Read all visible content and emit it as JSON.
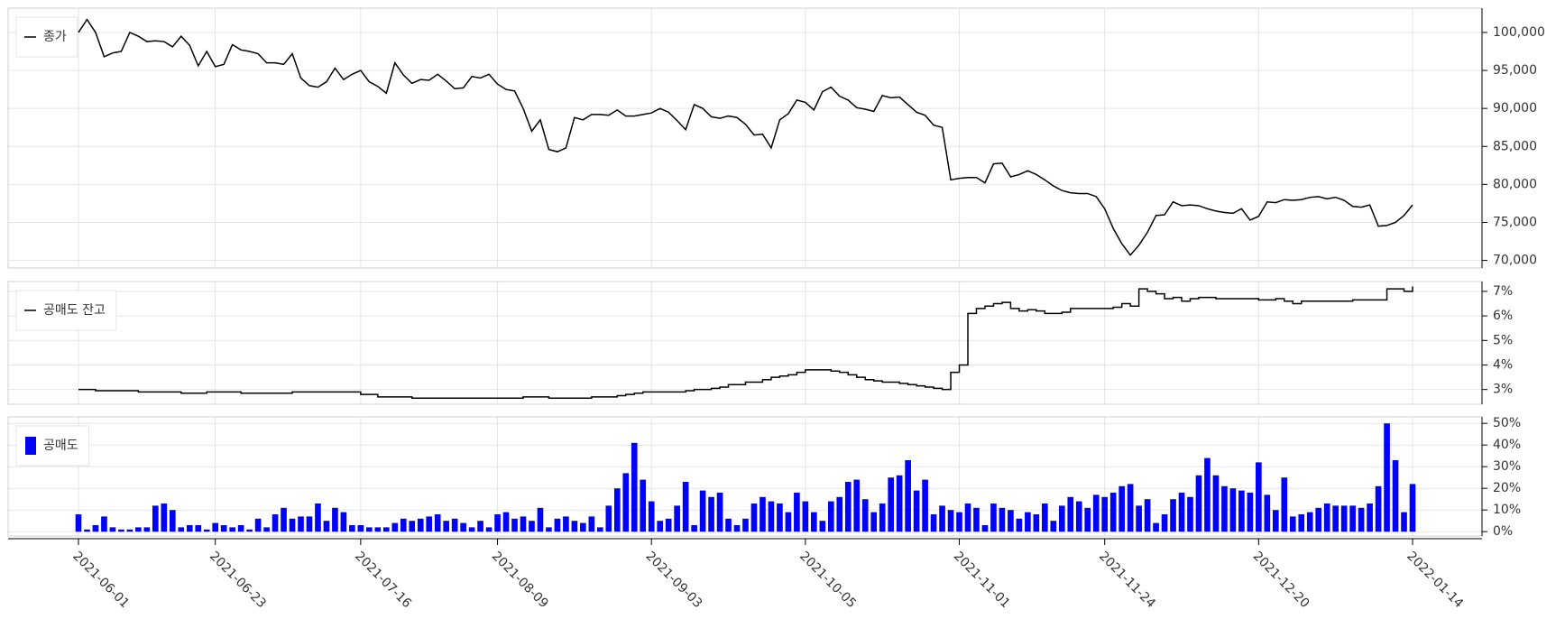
{
  "chart_data": {
    "x": [
      "2021-06-01",
      "2021-06-02",
      "2021-06-03",
      "2021-06-04",
      "2021-06-07",
      "2021-06-08",
      "2021-06-09",
      "2021-06-10",
      "2021-06-11",
      "2021-06-14",
      "2021-06-15",
      "2021-06-16",
      "2021-06-17",
      "2021-06-18",
      "2021-06-21",
      "2021-06-22",
      "2021-06-23",
      "2021-06-24",
      "2021-06-25",
      "2021-06-28",
      "2021-06-29",
      "2021-06-30",
      "2021-07-01",
      "2021-07-02",
      "2021-07-05",
      "2021-07-06",
      "2021-07-07",
      "2021-07-08",
      "2021-07-09",
      "2021-07-12",
      "2021-07-13",
      "2021-07-14",
      "2021-07-15",
      "2021-07-16",
      "2021-07-19",
      "2021-07-20",
      "2021-07-21",
      "2021-07-22",
      "2021-07-23",
      "2021-07-26",
      "2021-07-27",
      "2021-07-28",
      "2021-07-29",
      "2021-07-30",
      "2021-08-02",
      "2021-08-03",
      "2021-08-04",
      "2021-08-05",
      "2021-08-06",
      "2021-08-09",
      "2021-08-10",
      "2021-08-11",
      "2021-08-12",
      "2021-08-13",
      "2021-08-17",
      "2021-08-18",
      "2021-08-19",
      "2021-08-20",
      "2021-08-23",
      "2021-08-24",
      "2021-08-25",
      "2021-08-26",
      "2021-08-27",
      "2021-08-30",
      "2021-08-31",
      "2021-09-01",
      "2021-09-02",
      "2021-09-03",
      "2021-09-06",
      "2021-09-07",
      "2021-09-08",
      "2021-09-09",
      "2021-09-10",
      "2021-09-13",
      "2021-09-14",
      "2021-09-15",
      "2021-09-16",
      "2021-09-17",
      "2021-09-23",
      "2021-09-24",
      "2021-09-27",
      "2021-09-28",
      "2021-09-29",
      "2021-09-30",
      "2021-10-01",
      "2021-10-05",
      "2021-10-06",
      "2021-10-07",
      "2021-10-08",
      "2021-10-12",
      "2021-10-13",
      "2021-10-14",
      "2021-10-15",
      "2021-10-18",
      "2021-10-19",
      "2021-10-20",
      "2021-10-21",
      "2021-10-22",
      "2021-10-25",
      "2021-10-26",
      "2021-10-27",
      "2021-10-28",
      "2021-10-29",
      "2021-11-01",
      "2021-11-02",
      "2021-11-03",
      "2021-11-04",
      "2021-11-05",
      "2021-11-08",
      "2021-11-09",
      "2021-11-10",
      "2021-11-11",
      "2021-11-12",
      "2021-11-15",
      "2021-11-16",
      "2021-11-17",
      "2021-11-18",
      "2021-11-19",
      "2021-11-22",
      "2021-11-23",
      "2021-11-24",
      "2021-11-25",
      "2021-11-26",
      "2021-11-29",
      "2021-11-30",
      "2021-12-01",
      "2021-12-02",
      "2021-12-03",
      "2021-12-06",
      "2021-12-07",
      "2021-12-08",
      "2021-12-09",
      "2021-12-10",
      "2021-12-13",
      "2021-12-14",
      "2021-12-15",
      "2021-12-16",
      "2021-12-17",
      "2021-12-20",
      "2021-12-21",
      "2021-12-22",
      "2021-12-23",
      "2021-12-24",
      "2021-12-27",
      "2021-12-28",
      "2021-12-29",
      "2021-12-30",
      "2022-01-03",
      "2022-01-04",
      "2022-01-05",
      "2022-01-06",
      "2022-01-07",
      "2022-01-10",
      "2022-01-11",
      "2022-01-12",
      "2022-01-13",
      "2022-01-14"
    ],
    "xticks": [
      "2021-06-01",
      "2021-06-23",
      "2021-07-16",
      "2021-08-09",
      "2021-09-03",
      "2021-10-05",
      "2021-11-01",
      "2021-11-24",
      "2021-12-20",
      "2022-01-14"
    ],
    "panels": [
      {
        "type": "line",
        "legend": "upper left",
        "grid": true,
        "series": [
          {
            "name": "종가",
            "color": "#000000",
            "values": [
              100000,
              101700,
              100000,
              96800,
              97300,
              97500,
              100000,
              99500,
              98800,
              98900,
              98800,
              98100,
              99500,
              98300,
              95600,
              97500,
              95500,
              95800,
              98400,
              97700,
              97500,
              97200,
              96000,
              96000,
              95800,
              97200,
              94000,
              93000,
              92800,
              93500,
              95300,
              93800,
              94500,
              95000,
              93500,
              92900,
              92000,
              96000,
              94400,
              93300,
              93800,
              93700,
              94500,
              93600,
              92600,
              92700,
              94200,
              94000,
              94500,
              93200,
              92500,
              92300,
              90000,
              87000,
              88500,
              84600,
              84300,
              84800,
              88800,
              88500,
              89200,
              89200,
              89100,
              89800,
              89000,
              89000,
              89200,
              89400,
              90000,
              89500,
              88400,
              87200,
              90500,
              90000,
              88900,
              88700,
              89000,
              88800,
              87900,
              86500,
              86600,
              84800,
              88500,
              89300,
              91100,
              90800,
              89800,
              92200,
              92800,
              91600,
              91100,
              90100,
              89900,
              89600,
              91700,
              91400,
              91500,
              90500,
              89500,
              89100,
              87800,
              87500,
              80600,
              80800,
              80900,
              80900,
              80200,
              82700,
              82800,
              81000,
              81300,
              81800,
              81300,
              80600,
              79800,
              79200,
              78900,
              78800,
              78800,
              78400,
              76800,
              74200,
              72200,
              70700,
              72000,
              73700,
              75900,
              76000,
              77700,
              77200,
              77300,
              77200,
              76800,
              76500,
              76300,
              76200,
              76800,
              75300,
              75800,
              77700,
              77600,
              78000,
              77900,
              78000,
              78300,
              78400,
              78100,
              78300,
              77900,
              77100,
              77000,
              77300,
              74500,
              74600,
              75000,
              75900,
              77300
            ]
          }
        ],
        "ylim": [
          69000,
          103200
        ],
        "yticks": [
          {
            "value": 70000,
            "label": "70,000"
          },
          {
            "value": 75000,
            "label": "75,000"
          },
          {
            "value": 80000,
            "label": "80,000"
          },
          {
            "value": 85000,
            "label": "85,000"
          },
          {
            "value": 90000,
            "label": "90,000"
          },
          {
            "value": 95000,
            "label": "95,000"
          },
          {
            "value": 100000,
            "label": "100,000"
          }
        ]
      },
      {
        "type": "step",
        "legend": "upper left",
        "grid": true,
        "series": [
          {
            "name": "공매도 잔고",
            "color": "#000000",
            "values": [
              3.0,
              3.0,
              2.95,
              2.95,
              2.95,
              2.95,
              2.95,
              2.9,
              2.9,
              2.9,
              2.9,
              2.9,
              2.85,
              2.85,
              2.85,
              2.9,
              2.9,
              2.9,
              2.9,
              2.85,
              2.85,
              2.85,
              2.85,
              2.85,
              2.85,
              2.9,
              2.9,
              2.9,
              2.9,
              2.9,
              2.9,
              2.9,
              2.9,
              2.8,
              2.8,
              2.7,
              2.7,
              2.7,
              2.7,
              2.65,
              2.65,
              2.65,
              2.65,
              2.65,
              2.65,
              2.65,
              2.65,
              2.65,
              2.65,
              2.65,
              2.65,
              2.65,
              2.7,
              2.7,
              2.7,
              2.65,
              2.65,
              2.65,
              2.65,
              2.65,
              2.7,
              2.7,
              2.7,
              2.75,
              2.8,
              2.85,
              2.9,
              2.9,
              2.9,
              2.9,
              2.9,
              2.95,
              3.0,
              3.0,
              3.05,
              3.1,
              3.2,
              3.2,
              3.3,
              3.3,
              3.4,
              3.5,
              3.55,
              3.6,
              3.7,
              3.8,
              3.8,
              3.8,
              3.75,
              3.7,
              3.6,
              3.5,
              3.4,
              3.35,
              3.3,
              3.3,
              3.25,
              3.2,
              3.15,
              3.1,
              3.05,
              3.0,
              3.7,
              4.0,
              6.1,
              6.3,
              6.4,
              6.5,
              6.55,
              6.3,
              6.2,
              6.25,
              6.2,
              6.1,
              6.1,
              6.15,
              6.3,
              6.3,
              6.3,
              6.3,
              6.3,
              6.35,
              6.5,
              6.4,
              7.1,
              7.0,
              6.9,
              6.7,
              6.75,
              6.6,
              6.7,
              6.75,
              6.75,
              6.7,
              6.7,
              6.7,
              6.7,
              6.7,
              6.65,
              6.65,
              6.7,
              6.6,
              6.5,
              6.6,
              6.6,
              6.6,
              6.6,
              6.6,
              6.6,
              6.65,
              6.65,
              6.65,
              6.65,
              7.1,
              7.1,
              7.0,
              7.2
            ]
          }
        ],
        "ylim": [
          2.4,
          7.4
        ],
        "yticks": [
          {
            "value": 3,
            "label": "3%"
          },
          {
            "value": 4,
            "label": "4%"
          },
          {
            "value": 5,
            "label": "5%"
          },
          {
            "value": 6,
            "label": "6%"
          },
          {
            "value": 7,
            "label": "7%"
          }
        ]
      },
      {
        "type": "bar",
        "legend": "upper left",
        "grid": true,
        "series": [
          {
            "name": "공매도",
            "color": "#0000ff",
            "values": [
              8,
              1,
              3,
              7,
              2,
              1,
              1,
              2,
              2,
              12,
              13,
              10,
              2,
              3,
              3,
              1,
              4,
              3,
              2,
              3,
              1,
              6,
              2,
              8,
              11,
              6,
              7,
              7,
              13,
              5,
              11,
              9,
              3,
              3,
              2,
              2,
              2,
              4,
              6,
              5,
              6,
              7,
              8,
              5,
              6,
              4,
              2,
              5,
              2,
              8,
              9,
              6,
              7,
              5,
              11,
              2,
              6,
              7,
              5,
              4,
              7,
              2,
              12,
              20,
              27,
              41,
              24,
              14,
              5,
              6,
              12,
              23,
              3,
              19,
              16,
              18,
              6,
              3,
              6,
              13,
              16,
              14,
              13,
              9,
              18,
              14,
              9,
              5,
              14,
              16,
              23,
              24,
              15,
              9,
              13,
              25,
              26,
              33,
              19,
              24,
              8,
              12,
              10,
              9,
              13,
              11,
              3,
              13,
              11,
              10,
              6,
              9,
              8,
              13,
              5,
              12,
              16,
              14,
              11,
              17,
              16,
              18,
              21,
              22,
              12,
              15,
              4,
              8,
              15,
              18,
              16,
              26,
              34,
              26,
              21,
              20,
              19,
              18,
              32,
              17,
              10,
              25,
              7,
              8,
              9,
              11,
              13,
              12,
              12,
              12,
              11,
              13,
              21,
              50,
              33,
              9,
              22
            ]
          }
        ],
        "ylim": [
          -2,
          53
        ],
        "yticks": [
          {
            "value": 0,
            "label": "0%"
          },
          {
            "value": 10,
            "label": "10%"
          },
          {
            "value": 20,
            "label": "20%"
          },
          {
            "value": 30,
            "label": "30%"
          },
          {
            "value": 40,
            "label": "40%"
          },
          {
            "value": 50,
            "label": "50%"
          }
        ]
      }
    ]
  }
}
